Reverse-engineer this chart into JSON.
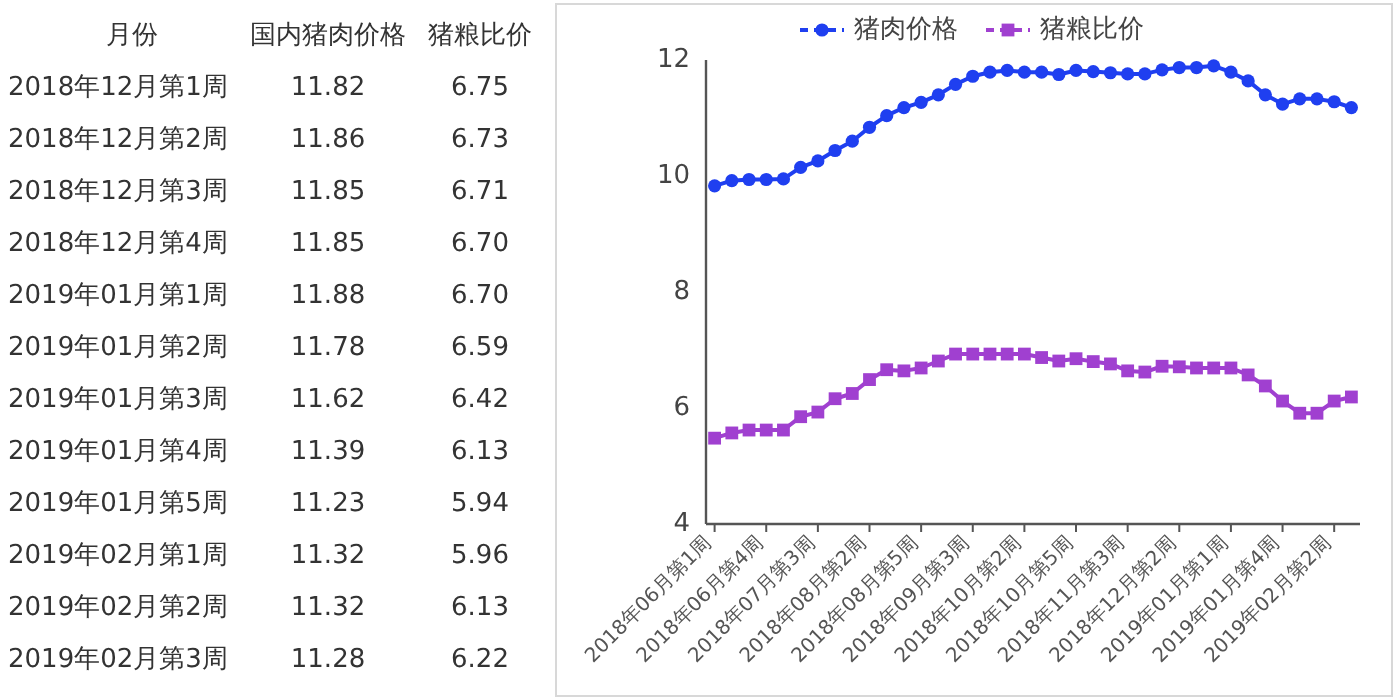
{
  "chart_data": [
    {
      "type": "other",
      "xlabel": "月份",
      "categories": [
        "2018年12月第1周",
        "2018年12月第2周",
        "2018年12月第3周",
        "2018年12月第4周",
        "2019年01月第1周",
        "2019年01月第2周",
        "2019年01月第3周",
        "2019年01月第4周",
        "2019年01月第5周",
        "2019年02月第1周",
        "2019年02月第2周",
        "2019年02月第3周"
      ],
      "series": [
        {
          "name": "国内猪肉价格",
          "values": [
            11.82,
            11.86,
            11.85,
            11.85,
            11.88,
            11.78,
            11.62,
            11.39,
            11.23,
            11.32,
            11.32,
            11.28
          ],
          "value_labels": [
            "11.82",
            "11.86",
            "11.85",
            "11.85",
            "11.88",
            "11.78",
            "11.62",
            "11.39",
            "11.23",
            "11.32",
            "11.32",
            "11.28"
          ]
        },
        {
          "name": "猪粮比价",
          "values": [
            6.75,
            6.73,
            6.71,
            6.7,
            6.7,
            6.59,
            6.42,
            6.13,
            5.94,
            5.96,
            6.13,
            6.22
          ],
          "value_labels": [
            "6.75",
            "6.73",
            "6.71",
            "6.70",
            "6.70",
            "6.59",
            "6.42",
            "6.13",
            "5.94",
            "5.96",
            "6.13",
            "6.22"
          ]
        }
      ]
    },
    {
      "type": "line",
      "categories": [
        "2018年06月第1周",
        null,
        null,
        "2018年06月第4周",
        null,
        null,
        "2018年07月第3周",
        null,
        null,
        "2018年08月第2周",
        null,
        null,
        "2018年08月第5周",
        null,
        null,
        "2018年09月第3周",
        null,
        null,
        "2018年10月第2周",
        null,
        null,
        "2018年10月第5周",
        null,
        null,
        "2018年11月第3周",
        null,
        null,
        "2018年12月第2周",
        null,
        null,
        "2019年01月第1周",
        null,
        null,
        "2019年01月第4周",
        null,
        null,
        "2019年02月第2周",
        null
      ],
      "series": [
        {
          "name": "猪肉价格",
          "color": "#1f3ff0",
          "marker": "circle",
          "values": [
            9.83,
            9.92,
            9.94,
            9.94,
            9.95,
            10.15,
            10.26,
            10.44,
            10.6,
            10.84,
            11.04,
            11.18,
            11.27,
            11.4,
            11.58,
            11.72,
            11.79,
            11.82,
            11.79,
            11.79,
            11.75,
            11.82,
            11.8,
            11.78,
            11.76,
            11.76,
            11.83,
            11.87,
            11.87,
            11.9,
            11.79,
            11.64,
            11.4,
            11.24,
            11.33,
            11.33,
            11.28,
            11.18
          ]
        },
        {
          "name": "猪粮比价",
          "color": "#a040d0",
          "marker": "square",
          "values": [
            5.48,
            5.57,
            5.62,
            5.62,
            5.62,
            5.85,
            5.93,
            6.16,
            6.25,
            6.49,
            6.66,
            6.64,
            6.69,
            6.81,
            6.93,
            6.93,
            6.93,
            6.93,
            6.93,
            6.87,
            6.81,
            6.85,
            6.8,
            6.76,
            6.64,
            6.62,
            6.72,
            6.71,
            6.69,
            6.69,
            6.69,
            6.57,
            6.38,
            6.12,
            5.91,
            5.91,
            6.12,
            6.19
          ]
        }
      ],
      "ylim": [
        4,
        12
      ],
      "yticks": [
        4,
        6,
        8,
        10,
        12
      ],
      "legend": "top",
      "grid": false,
      "line_style": "solid"
    }
  ]
}
